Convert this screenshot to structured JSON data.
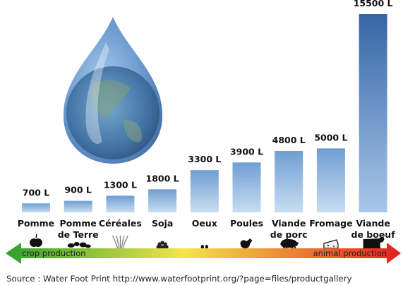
{
  "chart_data": {
    "type": "bar",
    "title": "",
    "xlabel": "",
    "ylabel": "",
    "ylim": [
      0,
      15500
    ],
    "grid": false,
    "categories": [
      [
        "Pomme"
      ],
      [
        "Pomme",
        "de Terre"
      ],
      [
        "Céréales"
      ],
      [
        "Soja"
      ],
      [
        "Oeux"
      ],
      [
        "Poules"
      ],
      [
        "Viande",
        "de porc"
      ],
      [
        "Fromage"
      ],
      [
        "Viande",
        "de boeuf"
      ]
    ],
    "values": [
      700,
      900,
      1300,
      1800,
      3300,
      3900,
      4800,
      5000,
      15500
    ],
    "value_labels": [
      "700 L",
      "900 L",
      "1300 L",
      "1800 L",
      "3300 L",
      "3900 L",
      "4800 L",
      "5000 L",
      "15500 L"
    ],
    "icons": [
      "apple-icon",
      "potatoes-icon",
      "wheat-icon",
      "soybeans-icon",
      "eggs-icon",
      "chicken-icon",
      "pig-icon",
      "cheese-icon",
      "cow-icon"
    ]
  },
  "arrow": {
    "left_label": "crop production",
    "right_label": "animal production",
    "colors": [
      "#2e9e2e",
      "#f4e64a",
      "#e02020"
    ]
  },
  "source": "Source : Water Foot Print http://www.waterfootprint.org/?page=files/productgallery",
  "colors": {
    "bar_top": "#6f9ed2",
    "bar_bottom": "#c8ddf2",
    "tall_bar_top": "#3566a6"
  }
}
